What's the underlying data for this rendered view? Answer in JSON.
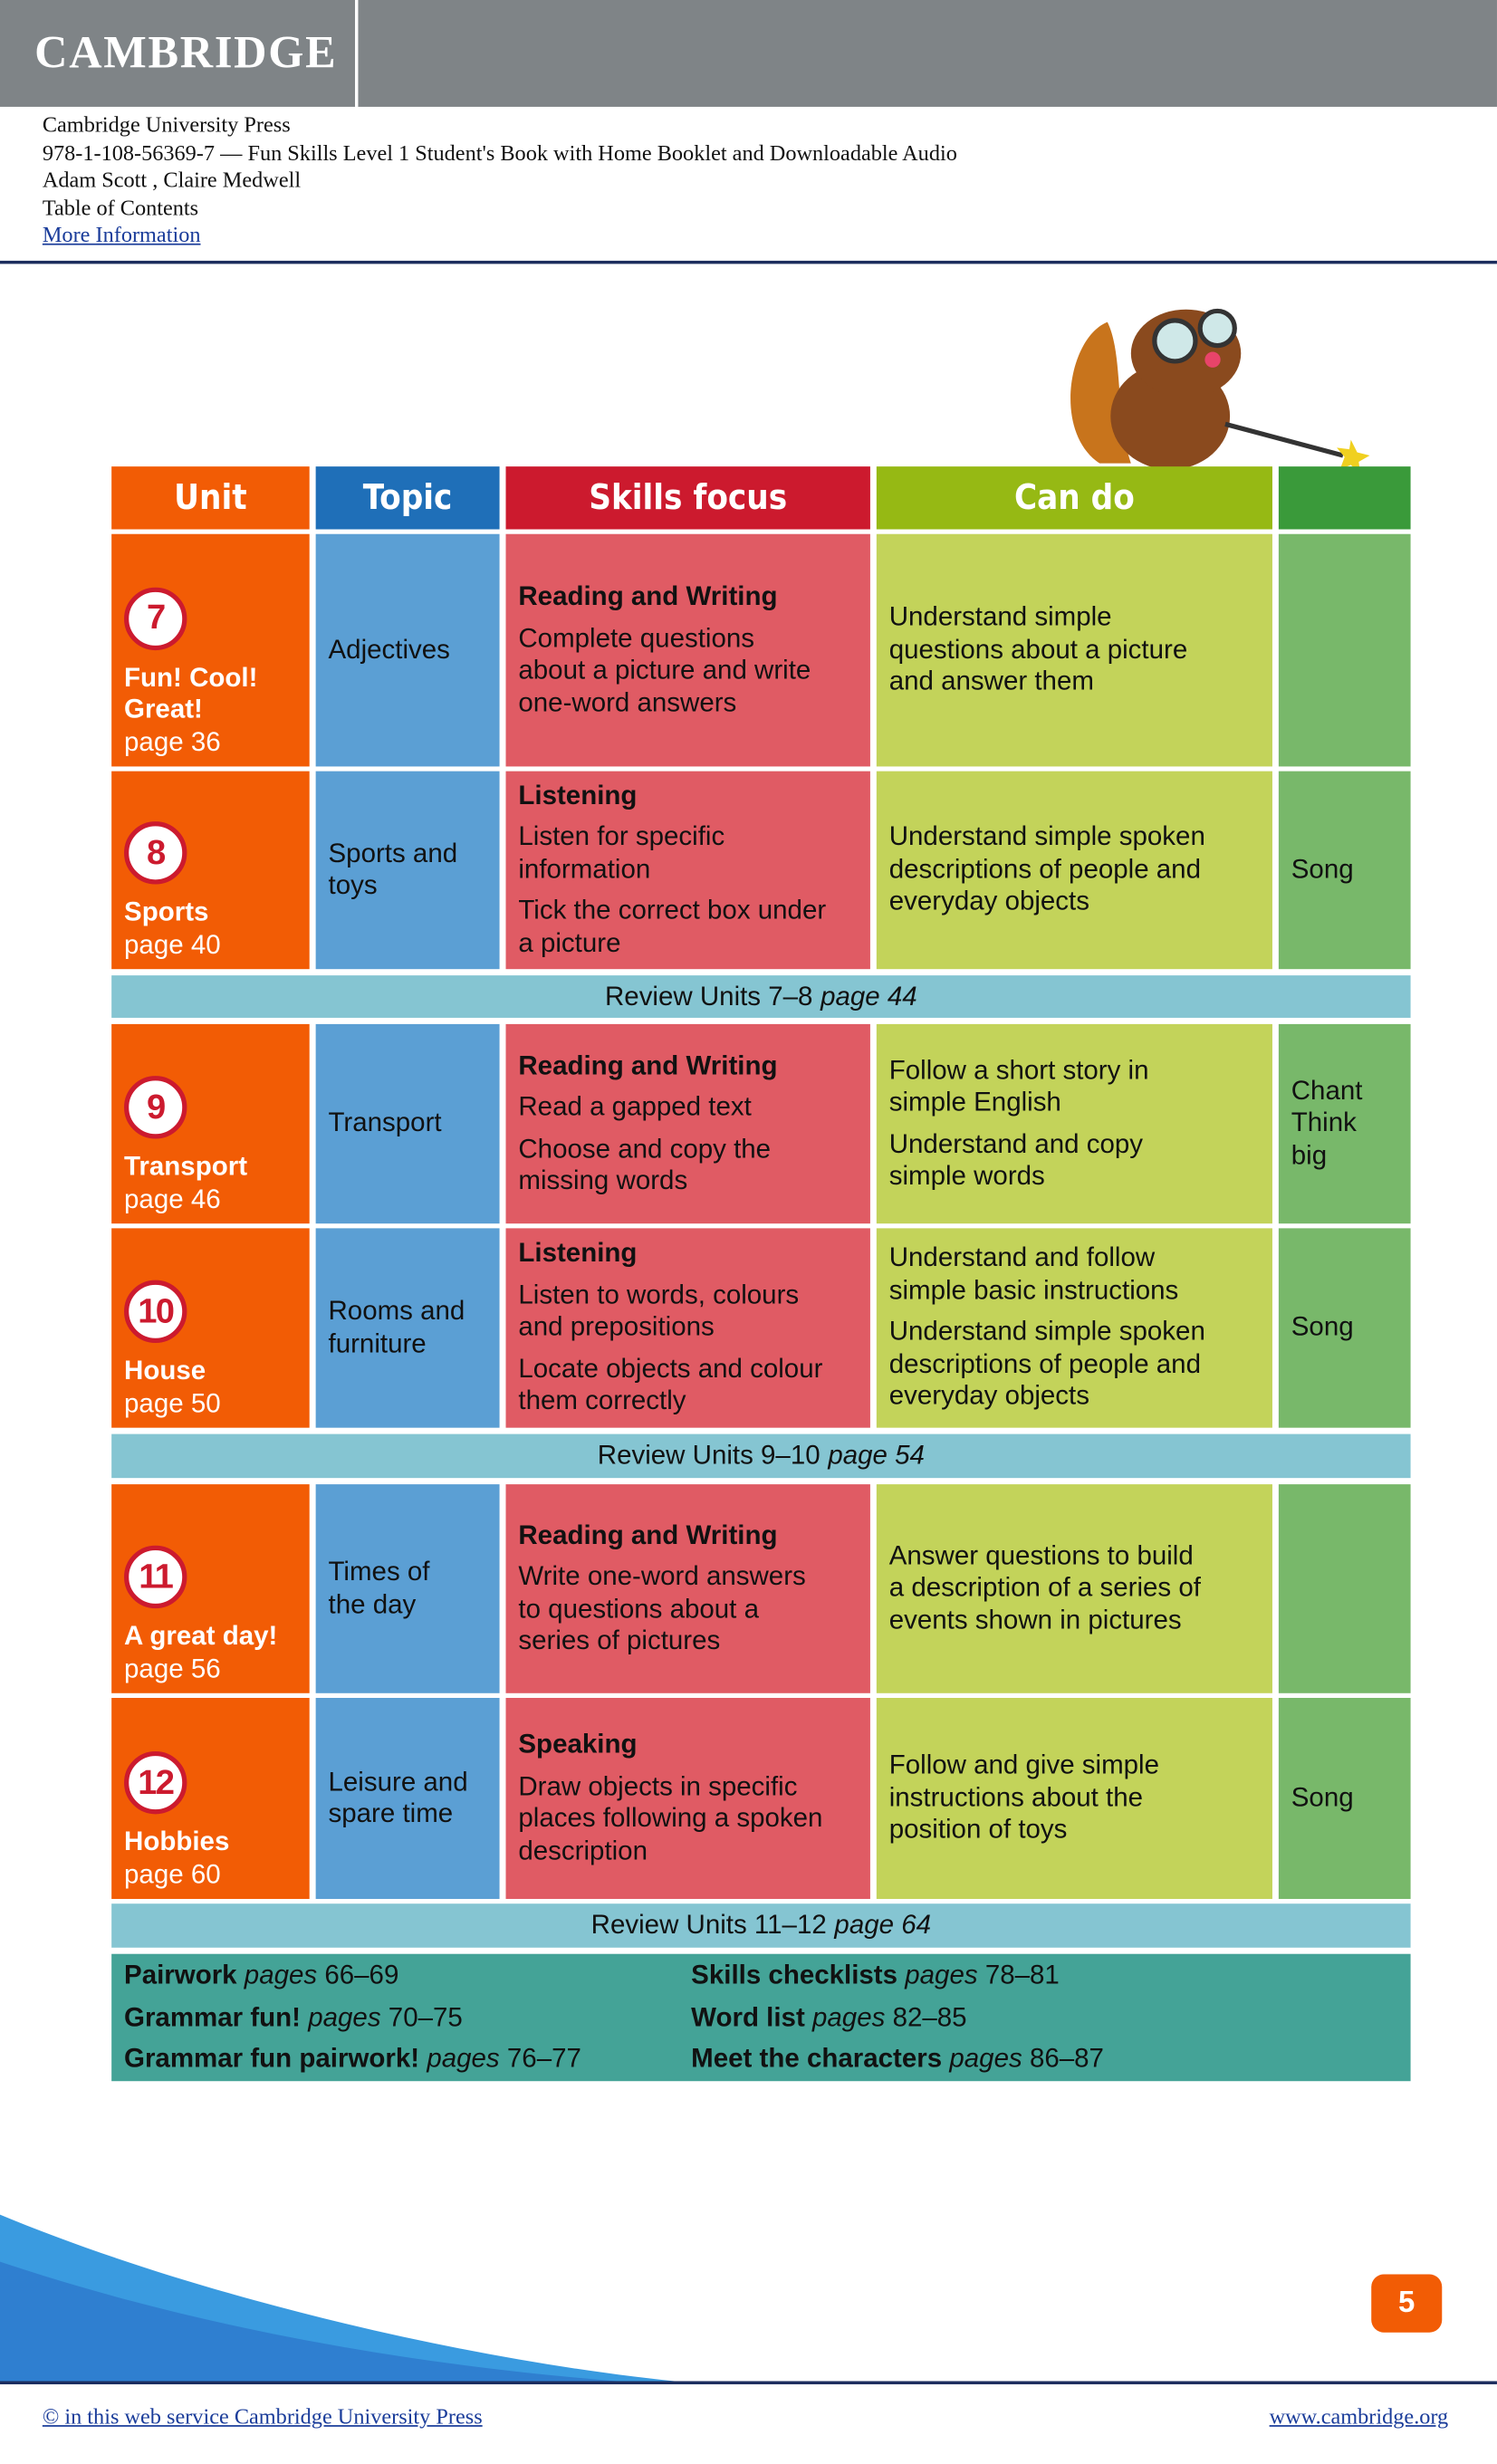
{
  "header": {
    "logo": "CAMBRIDGE",
    "publisher": "Cambridge University Press",
    "isbn_title": "978-1-108-56369-7 — Fun Skills Level 1 Student's Book with Home Booklet and Downloadable Audio",
    "authors": "Adam Scott , Claire Medwell",
    "section": "Table of Contents",
    "link": "More Information"
  },
  "table": {
    "columns": [
      "Unit",
      "Topic",
      "Skills focus",
      "Can do"
    ],
    "rows": [
      {
        "kind": "unit",
        "number": "7",
        "title": [
          "Fun! Cool!",
          "Great!"
        ],
        "page": "page 36",
        "topic": [
          "Adjectives"
        ],
        "skills": [
          {
            "heading": "Reading and Writing",
            "items": [
              [
                "Complete questions",
                "about a picture and write",
                "one-word answers"
              ]
            ]
          }
        ],
        "can_do": [
          [
            "Understand simple",
            "questions about a picture",
            "and answer them"
          ]
        ]
      },
      {
        "kind": "unit",
        "number": "8",
        "title": [
          "Sports"
        ],
        "page": "page 40",
        "topic": [
          "Sports and",
          "toys"
        ],
        "skills": [
          {
            "heading": "Listening",
            "items": [
              [
                "Listen for specific",
                "information"
              ],
              [
                "Tick the correct box under",
                "a picture"
              ]
            ]
          }
        ],
        "can_do": [
          [
            "Understand simple spoken",
            "descriptions of people and",
            "everyday objects"
          ]
        ],
        "extra": [
          "Song"
        ]
      },
      {
        "kind": "review",
        "text": "Review Units 7–8",
        "page": "page 44"
      },
      {
        "kind": "unit",
        "number": "9",
        "title": [
          "Transport"
        ],
        "page": "page 46",
        "topic": [
          "Transport"
        ],
        "skills": [
          {
            "heading": "Reading and Writing",
            "items": [
              [
                "Read a gapped text"
              ],
              [
                "Choose and copy the",
                "missing words"
              ]
            ]
          }
        ],
        "can_do": [
          [
            "Follow a short story in",
            "simple English"
          ],
          [
            "Understand and copy",
            "simple words"
          ]
        ],
        "extra": [
          "Chant",
          "Think",
          "big"
        ]
      },
      {
        "kind": "unit",
        "number": "10",
        "title": [
          "House"
        ],
        "page": "page 50",
        "topic": [
          "Rooms and",
          "furniture"
        ],
        "skills": [
          {
            "heading": "Listening",
            "items": [
              [
                "Listen to words, colours",
                "and prepositions"
              ],
              [
                "Locate objects and colour",
                "them correctly"
              ]
            ]
          }
        ],
        "can_do": [
          [
            "Understand and follow",
            "simple basic instructions"
          ],
          [
            "Understand simple spoken",
            "descriptions of people and",
            "everyday objects"
          ]
        ],
        "extra": [
          "Song"
        ]
      },
      {
        "kind": "review",
        "text": "Review Units 9–10",
        "page": "page 54"
      },
      {
        "kind": "unit",
        "number": "11",
        "title": [
          "A great day!"
        ],
        "page": "page 56",
        "topic": [
          "Times of",
          "the day"
        ],
        "skills": [
          {
            "heading": "Reading and Writing",
            "items": [
              [
                "Write one-word answers",
                "to questions about a",
                "series of pictures"
              ]
            ]
          }
        ],
        "can_do": [
          [
            "Answer questions to build",
            "a description of a series of",
            "events shown in pictures"
          ]
        ]
      },
      {
        "kind": "unit",
        "number": "12",
        "title": [
          "Hobbies"
        ],
        "page": "page 60",
        "topic": [
          "Leisure and",
          "spare time"
        ],
        "skills": [
          {
            "heading": "Speaking",
            "items": [
              [
                "Draw objects in specific",
                "places following a spoken",
                "description"
              ]
            ]
          }
        ],
        "can_do": [
          [
            "Follow and give simple",
            "instructions about the",
            "position of toys"
          ]
        ],
        "extra": [
          "Song"
        ]
      },
      {
        "kind": "review",
        "text": "Review Units 11–12",
        "page": "page 64"
      }
    ]
  },
  "extras": [
    {
      "bold": "Pairwork",
      "italic": "pages",
      "rest": "66–69"
    },
    {
      "bold": "Grammar fun!",
      "italic": "pages",
      "rest": "70–75"
    },
    {
      "bold": "Grammar fun pairwork!",
      "italic": "pages",
      "rest": "76–77"
    },
    {
      "bold": "Skills checklists",
      "italic": "pages",
      "rest": "78–81"
    },
    {
      "bold": "Word list",
      "italic": "pages",
      "rest": "82–85"
    },
    {
      "bold": "Meet the characters",
      "italic": "pages",
      "rest": "86–87"
    }
  ],
  "page_number": "5",
  "footer": {
    "copyright": "© in this web service Cambridge University Press",
    "website": "www.cambridge.org"
  }
}
